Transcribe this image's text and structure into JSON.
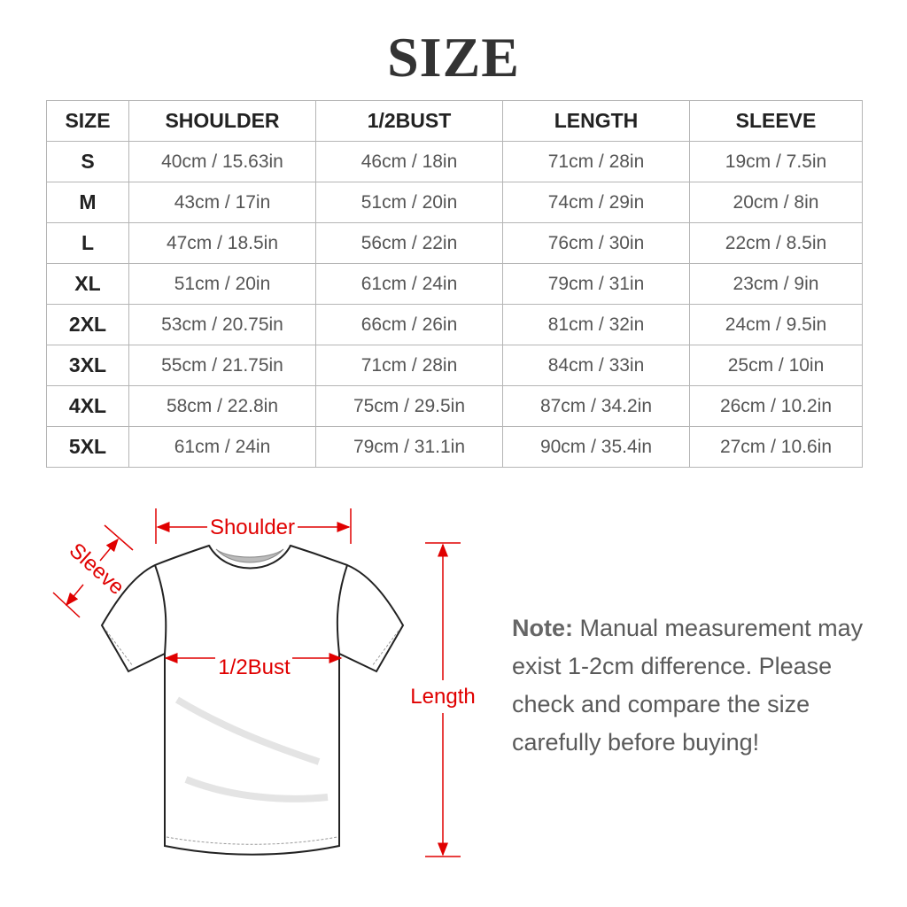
{
  "title": "SIZE",
  "table": {
    "headers": [
      "SIZE",
      "SHOULDER",
      "1/2BUST",
      "LENGTH",
      "SLEEVE"
    ],
    "rows": [
      [
        "S",
        "40cm / 15.63in",
        "46cm / 18in",
        "71cm / 28in",
        "19cm / 7.5in"
      ],
      [
        "M",
        "43cm / 17in",
        "51cm / 20in",
        "74cm / 29in",
        "20cm / 8in"
      ],
      [
        "L",
        "47cm / 18.5in",
        "56cm / 22in",
        "76cm / 30in",
        "22cm / 8.5in"
      ],
      [
        "XL",
        "51cm / 20in",
        "61cm / 24in",
        "79cm / 31in",
        "23cm / 9in"
      ],
      [
        "2XL",
        "53cm / 20.75in",
        "66cm / 26in",
        "81cm / 32in",
        "24cm / 9.5in"
      ],
      [
        "3XL",
        "55cm / 21.75in",
        "71cm / 28in",
        "84cm / 33in",
        "25cm / 10in"
      ],
      [
        "4XL",
        "58cm / 22.8in",
        "75cm / 29.5in",
        "87cm / 34.2in",
        "26cm / 10.2in"
      ],
      [
        "5XL",
        "61cm / 24in",
        "79cm / 31.1in",
        "90cm / 35.4in",
        "27cm / 10.6in"
      ]
    ]
  },
  "diagram": {
    "shoulder": "Shoulder",
    "sleeve": "Sleeve",
    "bust": "1/2Bust",
    "length": "Length",
    "accent_color": "#e00000"
  },
  "note": {
    "label": "Note:",
    "text": " Manual measurement may exist 1-2cm difference. Please check and compare the size carefully before buying!"
  }
}
